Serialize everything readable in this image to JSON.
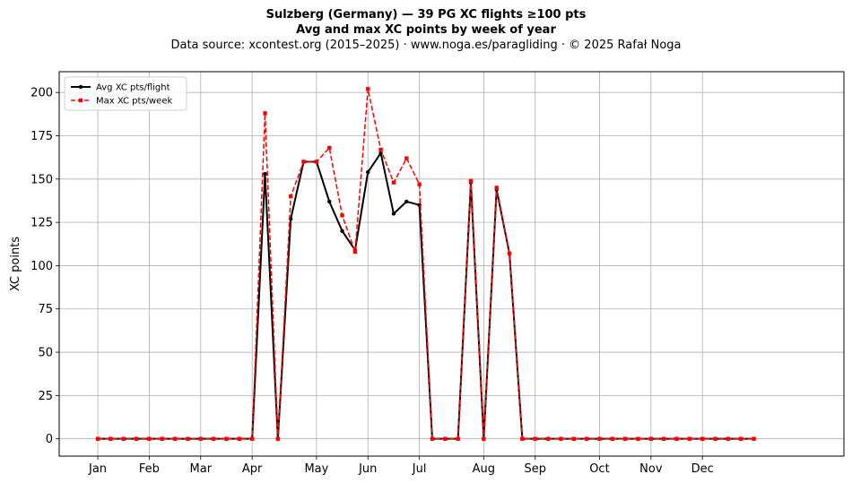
{
  "chart_data": {
    "type": "line",
    "title_line1": "Sulzberg (Germany)  —  39 PG XC flights ≥100 pts",
    "title_line2": "Avg and max XC points by week of year",
    "subtitle": "Data source: xcontest.org (2015–2025)  ·  www.noga.es/paragliding  ·  © 2025 Rafał Noga",
    "xlabel": "",
    "ylabel": "XC points",
    "ylim": [
      -10,
      212
    ],
    "xlim": [
      -3,
      58
    ],
    "grid": true,
    "legend_position": "top-left",
    "month_ticks": [
      {
        "label": "Jan",
        "week": 0
      },
      {
        "label": "Feb",
        "week": 4
      },
      {
        "label": "Mar",
        "week": 8
      },
      {
        "label": "Apr",
        "week": 12
      },
      {
        "label": "May",
        "week": 17
      },
      {
        "label": "Jun",
        "week": 21
      },
      {
        "label": "Jul",
        "week": 25
      },
      {
        "label": "Aug",
        "week": 30
      },
      {
        "label": "Sep",
        "week": 34
      },
      {
        "label": "Oct",
        "week": 39
      },
      {
        "label": "Nov",
        "week": 43
      },
      {
        "label": "Dec",
        "week": 47
      }
    ],
    "y_ticks": [
      0,
      25,
      50,
      75,
      100,
      125,
      150,
      175,
      200
    ],
    "x": [
      0,
      1,
      2,
      3,
      4,
      5,
      6,
      7,
      8,
      9,
      10,
      11,
      12,
      13,
      14,
      15,
      16,
      17,
      18,
      19,
      20,
      21,
      22,
      23,
      24,
      25,
      26,
      27,
      28,
      29,
      30,
      31,
      32,
      33,
      34,
      35,
      36,
      37,
      38,
      39,
      40,
      41,
      42,
      43,
      44,
      45,
      46,
      47,
      48,
      49,
      50,
      51
    ],
    "series": [
      {
        "name": "Avg XC pts/flight",
        "color": "#000000",
        "values": [
          0,
          0,
          0,
          0,
          0,
          0,
          0,
          0,
          0,
          0,
          0,
          0,
          0,
          153,
          0,
          127,
          160,
          160,
          137,
          120,
          109,
          154,
          165,
          130,
          137,
          135,
          0,
          0,
          0,
          148,
          0,
          144,
          107,
          0,
          0,
          0,
          0,
          0,
          0,
          0,
          0,
          0,
          0,
          0,
          0,
          0,
          0,
          0,
          0,
          0,
          0,
          0
        ]
      },
      {
        "name": "Max XC pts/week",
        "color": "#ff0000",
        "values": [
          0,
          0,
          0,
          0,
          0,
          0,
          0,
          0,
          0,
          0,
          0,
          0,
          0,
          188,
          0,
          140,
          160,
          160,
          168,
          129,
          108,
          202,
          167,
          148,
          162,
          147,
          0,
          0,
          0,
          149,
          0,
          145,
          107,
          0,
          0,
          0,
          0,
          0,
          0,
          0,
          0,
          0,
          0,
          0,
          0,
          0,
          0,
          0,
          0,
          0,
          0,
          0
        ]
      }
    ]
  }
}
